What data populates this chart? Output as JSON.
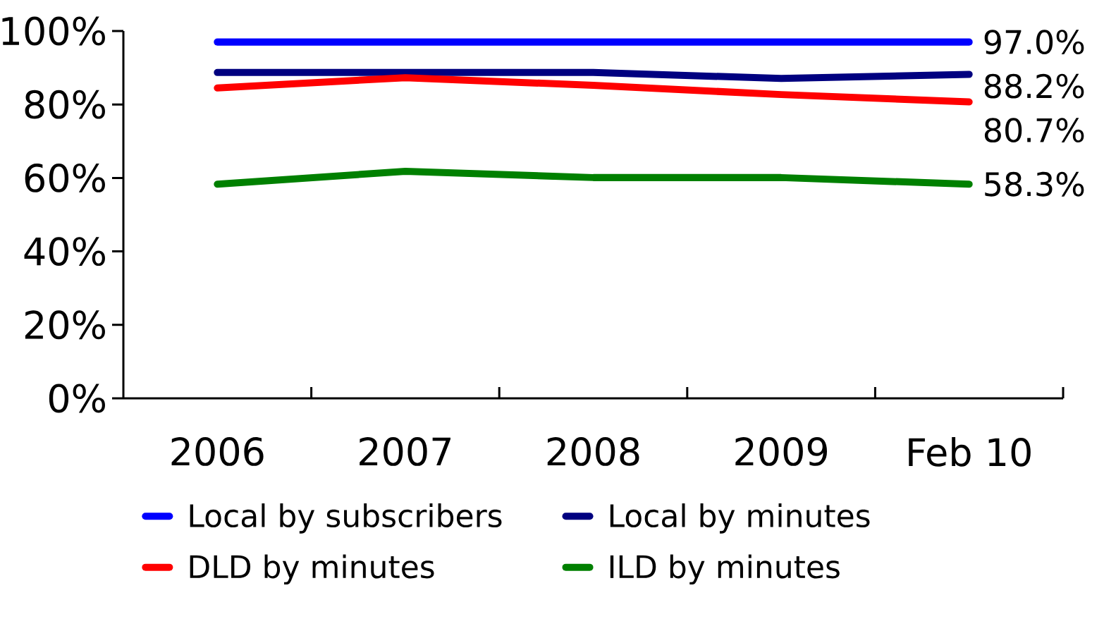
{
  "chart_data": {
    "type": "line",
    "categories": [
      "2006",
      "2007",
      "2008",
      "2009",
      "Feb 10"
    ],
    "series": [
      {
        "name": "Local by subscribers",
        "color": "#0000ff",
        "values": [
          97.0,
          97.0,
          97.0,
          97.0,
          97.0
        ],
        "value_labels": [
          null,
          null,
          null,
          null,
          "97.0%"
        ]
      },
      {
        "name": "Local by minutes",
        "color": "#000080",
        "values": [
          88.7,
          88.7,
          88.7,
          87.1,
          88.2
        ],
        "value_labels": [
          null,
          null,
          null,
          null,
          "88.2%"
        ]
      },
      {
        "name": "DLD by minutes",
        "color": "#ff0000",
        "values": [
          84.5,
          87.3,
          85.2,
          82.7,
          80.7
        ],
        "value_labels": [
          null,
          null,
          null,
          null,
          "80.7%"
        ]
      },
      {
        "name": "ILD by minutes",
        "color": "#008000",
        "values": [
          58.3,
          61.8,
          60.1,
          60.1,
          58.3
        ],
        "value_labels": [
          null,
          null,
          null,
          null,
          "58.3%"
        ]
      }
    ],
    "ylim": [
      0,
      100
    ],
    "yticks": [
      {
        "value": 0,
        "label": "0%"
      },
      {
        "value": 20,
        "label": "20%"
      },
      {
        "value": 40,
        "label": "40%"
      },
      {
        "value": 60,
        "label": "60%"
      },
      {
        "value": 80,
        "label": "80%"
      },
      {
        "value": 100,
        "label": "100%"
      }
    ],
    "grid": false,
    "legend": "bottom",
    "marker": "none",
    "line_style": "solid"
  }
}
